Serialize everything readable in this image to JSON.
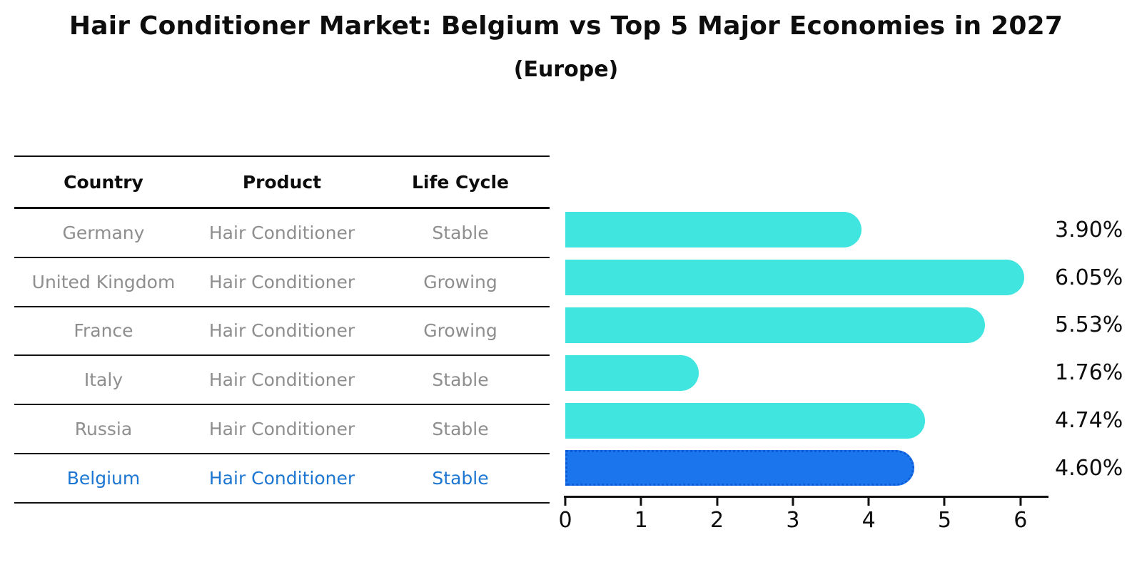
{
  "title": "Hair Conditioner Market: Belgium vs Top 5 Major Economies in 2027",
  "subtitle": "(Europe)",
  "table": {
    "headers": [
      "Country",
      "Product",
      "Life Cycle"
    ],
    "rows": [
      {
        "country": "Germany",
        "product": "Hair Conditioner",
        "life_cycle": "Stable",
        "highlighted": false
      },
      {
        "country": "United Kingdom",
        "product": "Hair Conditioner",
        "life_cycle": "Growing",
        "highlighted": false
      },
      {
        "country": "France",
        "product": "Hair Conditioner",
        "life_cycle": "Growing",
        "highlighted": false
      },
      {
        "country": "Italy",
        "product": "Hair Conditioner",
        "life_cycle": "Stable",
        "highlighted": false
      },
      {
        "country": "Russia",
        "product": "Hair Conditioner",
        "life_cycle": "Stable",
        "highlighted": false
      },
      {
        "country": "Belgium",
        "product": "Hair Conditioner",
        "life_cycle": "Stable",
        "highlighted": true
      }
    ]
  },
  "chart_data": {
    "type": "bar",
    "orientation": "horizontal",
    "title": "Hair Conditioner Market: Belgium vs Top 5 Major Economies in 2027 (Europe)",
    "categories": [
      "Germany",
      "United Kingdom",
      "France",
      "Italy",
      "Russia",
      "Belgium"
    ],
    "values": [
      3.9,
      6.05,
      5.53,
      1.76,
      4.74,
      4.6
    ],
    "value_labels": [
      "3.90%",
      "6.05%",
      "5.53%",
      "1.76%",
      "4.74%",
      "4.60%"
    ],
    "xlabel": "",
    "ylabel": "",
    "xlim": [
      0,
      6.36
    ],
    "x_ticks": [
      0,
      1,
      2,
      3,
      4,
      5,
      6
    ],
    "grid": false,
    "legend": "none",
    "bar_color": "#40E5E0",
    "highlight_color": "#1B75EC",
    "highlight_index": 5
  },
  "colors": {
    "bar": "#40E5E0",
    "highlight_bar": "#1B75EC",
    "highlight_border": "#0E5BD8",
    "highlight_text": "#1D76D2",
    "row_text": "#8E8E8E",
    "axis": "#111111"
  }
}
